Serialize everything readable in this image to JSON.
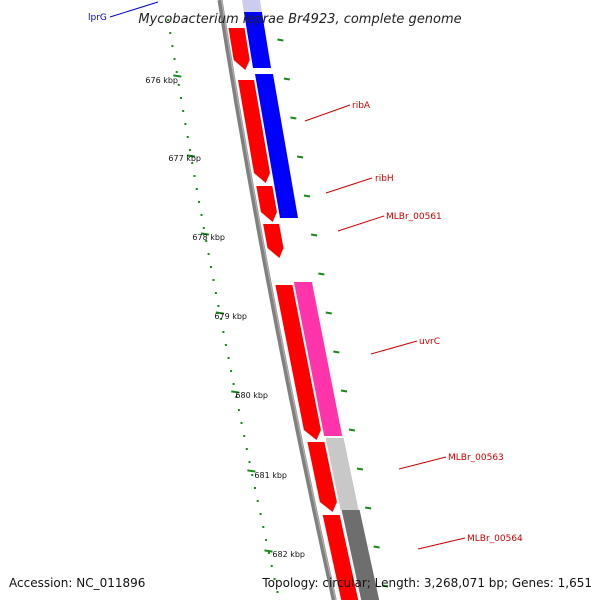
{
  "title": "Mycobacterium leprae Br4923, complete genome",
  "footer": {
    "accession": "Accession: NC_011896",
    "summary": "Topology: circular; Length: 3,268,071 bp; Genes: 1,651"
  },
  "tick_labels": [
    "676 kbp",
    "677 kbp",
    "678 kbp",
    "679 kbp",
    "680 kbp",
    "681 kbp",
    "682 kbp"
  ],
  "gene_labels": [
    {
      "text": "lprG",
      "color": "#0000cc"
    },
    {
      "text": "ribA",
      "color": "#cc0000"
    },
    {
      "text": "ribH",
      "color": "#cc0000"
    },
    {
      "text": "MLBr_00561",
      "color": "#cc0000"
    },
    {
      "text": "uvrC",
      "color": "#cc0000"
    },
    {
      "text": "MLBr_00563",
      "color": "#cc0000"
    },
    {
      "text": "MLBr_00564",
      "color": "#cc0000"
    }
  ],
  "colors": {
    "backbone": "#808080",
    "cds": "#ff0000",
    "gene": "#0000ff",
    "misc": "#ff33aa",
    "light_grey": "#c8c8c8",
    "dark_grey": "#6e6e6e",
    "tick": "#1a8a1a",
    "label_line_blue": "#0000cc",
    "label_line_red": "#cc0000"
  }
}
